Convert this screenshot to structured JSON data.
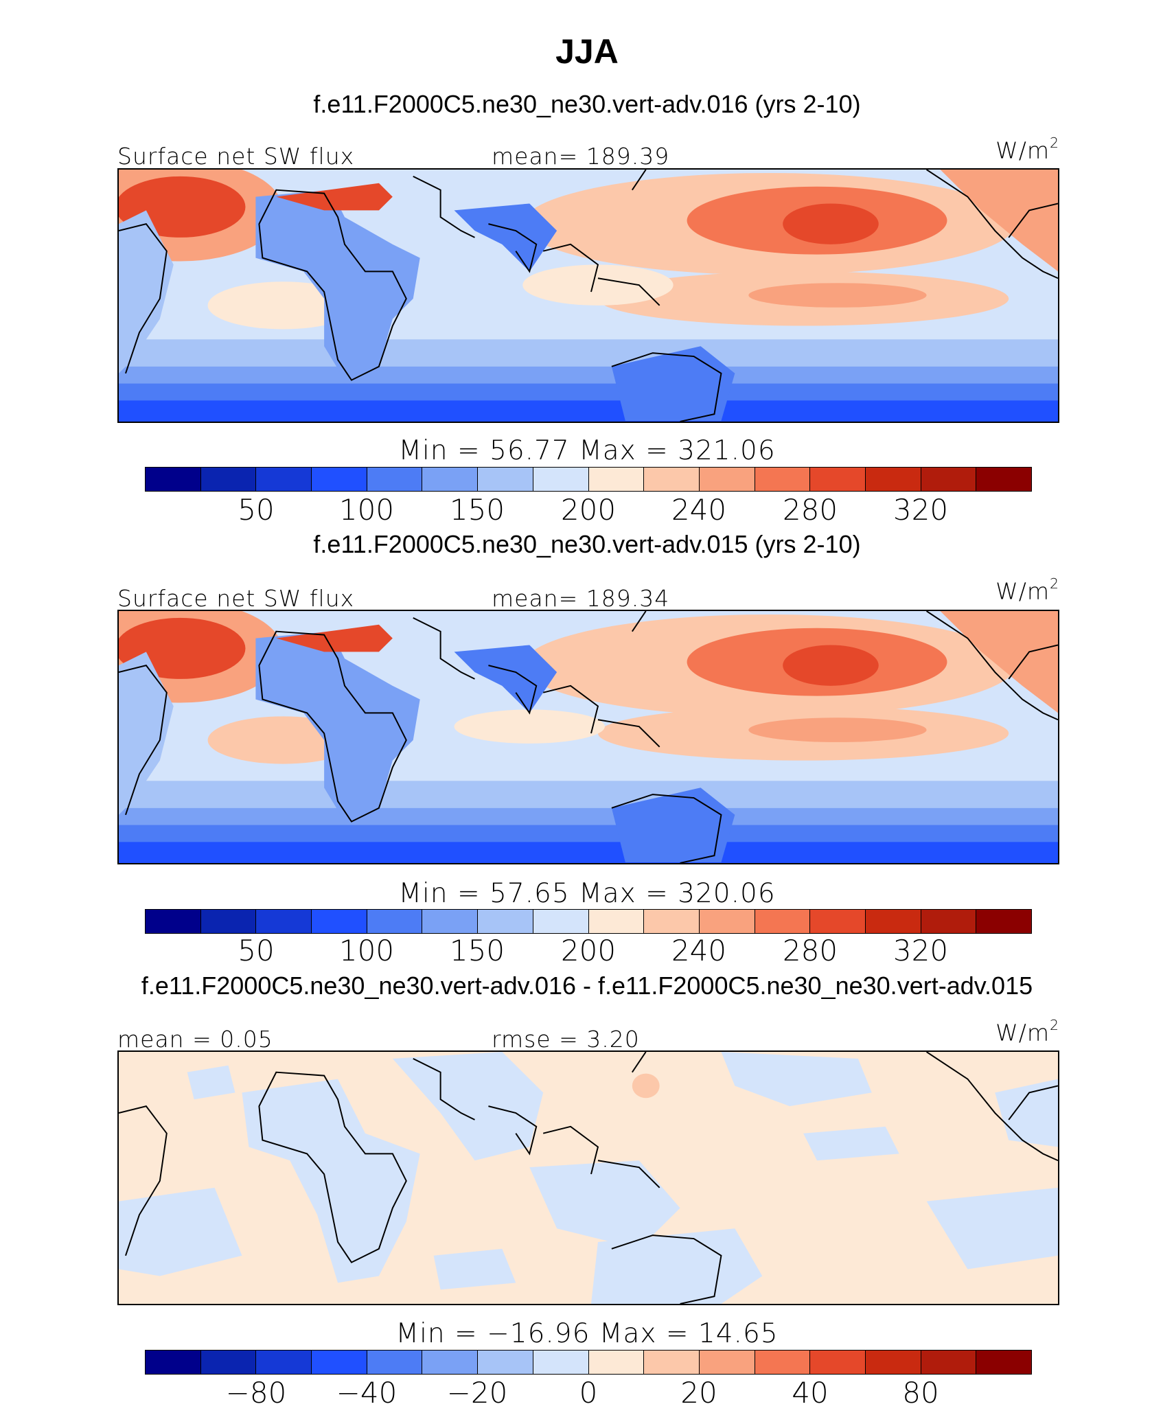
{
  "title": "JJA",
  "units_label": "W/m",
  "units_sup": "2",
  "panels": [
    {
      "case": "f.e11.F2000C5.ne30_ne30.vert-adv.016 (yrs 2-10)",
      "left_label": "Surface net SW flux",
      "center_label": "mean= 189.39",
      "minmax": "Min =   56.77  Max =  321.06",
      "ticks": [
        "50",
        "100",
        "150",
        "200",
        "240",
        "280",
        "320"
      ]
    },
    {
      "case": "f.e11.F2000C5.ne30_ne30.vert-adv.015 (yrs 2-10)",
      "left_label": "Surface net SW flux",
      "center_label": "mean= 189.34",
      "minmax": "Min =   57.65  Max =  320.06",
      "ticks": [
        "50",
        "100",
        "150",
        "200",
        "240",
        "280",
        "320"
      ]
    },
    {
      "case": "f.e11.F2000C5.ne30_ne30.vert-adv.016 - f.e11.F2000C5.ne30_ne30.vert-adv.015",
      "left_label": "mean =   0.05",
      "center_label": "rmse =    3.20",
      "minmax": "Min = −16.96  Max =   14.65",
      "ticks": [
        "−80",
        "−40",
        "−20",
        "0",
        "20",
        "40",
        "80"
      ]
    }
  ],
  "colorbar_colors": [
    "#00008b",
    "#0a24b0",
    "#1539d6",
    "#2050ff",
    "#4d7cf5",
    "#7aa1f5",
    "#a7c4f7",
    "#d4e4fb",
    "#fde9d6",
    "#fcc8aa",
    "#f9a27e",
    "#f47652",
    "#e5482a",
    "#c92a10",
    "#b01c0c",
    "#8b0000"
  ]
}
